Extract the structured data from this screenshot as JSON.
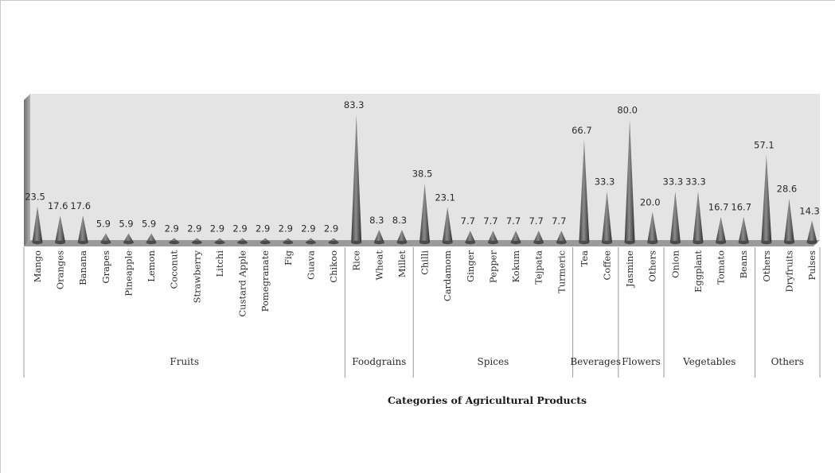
{
  "chart_data": {
    "type": "bar",
    "mark": "cone",
    "xlabel": "Categories of Agricultural Products",
    "ylabel": "",
    "ylim": [
      0,
      90
    ],
    "grid": false,
    "legend": "none",
    "colors": {
      "mark": "#5a5a5a",
      "plot_bg": "#e4e4e4",
      "floor": "#9a9a9a"
    },
    "categories": [
      "Mango",
      "Oranges",
      "Banana",
      "Grapes",
      "Pineapple",
      "Lemon",
      "Coconut",
      "Strawberry",
      "Litchi",
      "Custard Apple",
      "Pomegranate",
      "Fig",
      "Guava",
      "Chikoo",
      "Rice",
      "Wheat",
      "Millet",
      "Chilli",
      "Cardamom",
      "Ginger",
      "Pepper",
      "Kokum",
      "Tejpata",
      "Turmeric",
      "Tea",
      "Coffee",
      "Jasmine",
      "Others",
      "Onion",
      "Eggplant",
      "Tomato",
      "Beans",
      "Others",
      "Dryfruits",
      "Pulses"
    ],
    "values": [
      23.5,
      17.6,
      17.6,
      5.9,
      5.9,
      5.9,
      2.9,
      2.9,
      2.9,
      2.9,
      2.9,
      2.9,
      2.9,
      2.9,
      83.3,
      8.3,
      8.3,
      38.5,
      23.1,
      7.7,
      7.7,
      7.7,
      7.7,
      7.7,
      66.7,
      33.3,
      80.0,
      20.0,
      33.3,
      33.3,
      16.7,
      16.7,
      57.1,
      28.6,
      14.3
    ],
    "value_labels": [
      "23.5",
      "17.6",
      "17.6",
      "5.9",
      "5.9",
      "5.9",
      "2.9",
      "2.9",
      "2.9",
      "2.9",
      "2.9",
      "2.9",
      "2.9",
      "2.9",
      "83.3",
      "8.3",
      "8.3",
      "38.5",
      "23.1",
      "7.7",
      "7.7",
      "7.7",
      "7.7",
      "7.7",
      "66.7",
      "33.3",
      "80.0",
      "20.0",
      "33.3",
      "33.3",
      "16.7",
      "16.7",
      "57.1",
      "28.6",
      "14.3"
    ],
    "groups": [
      {
        "name": "Fruits",
        "count": 14
      },
      {
        "name": "Foodgrains",
        "count": 3
      },
      {
        "name": "Spices",
        "count": 7
      },
      {
        "name": "Beverages",
        "count": 2
      },
      {
        "name": "Flowers",
        "count": 2
      },
      {
        "name": "Vegetables",
        "count": 4
      },
      {
        "name": "Others",
        "count": 3
      }
    ]
  }
}
